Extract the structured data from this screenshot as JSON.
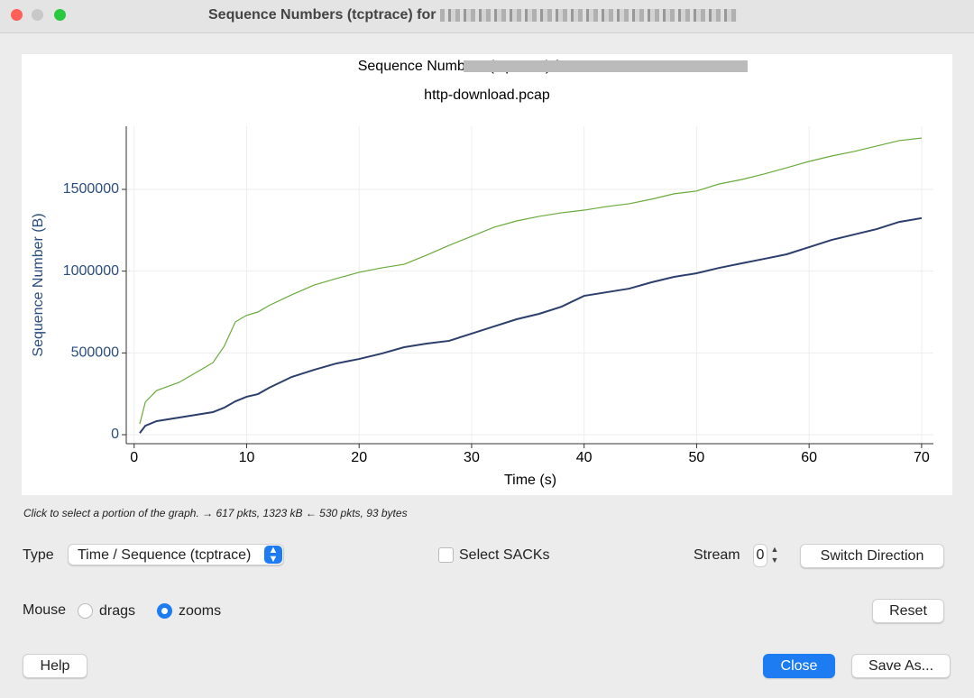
{
  "window": {
    "title": "Sequence Numbers (tcptrace) for"
  },
  "chart_data": {
    "type": "line",
    "title": "Sequence Numbers (tcptrace) for",
    "subtitle": "http-download.pcap",
    "x_label": "Time (s)",
    "y_label": "Sequence Number (B)",
    "x": [
      0.5,
      1,
      2,
      4,
      6,
      7,
      8,
      9,
      10,
      11,
      12,
      14,
      16,
      18,
      20,
      22,
      24,
      26,
      28,
      30,
      32,
      34,
      36,
      38,
      40,
      42,
      44,
      46,
      48,
      50,
      52,
      54,
      56,
      58,
      60,
      62,
      64,
      66,
      68,
      70
    ],
    "series": [
      {
        "color": "#6aaa3a",
        "values": [
          66000,
          200000,
          270000,
          320000,
          400000,
          440000,
          540000,
          690000,
          730000,
          750000,
          790000,
          855000,
          915000,
          955000,
          993000,
          1020000,
          1042000,
          1098000,
          1158000,
          1213000,
          1269000,
          1307000,
          1335000,
          1357000,
          1373000,
          1395000,
          1412000,
          1440000,
          1473000,
          1490000,
          1533000,
          1560000,
          1594000,
          1632000,
          1671000,
          1704000,
          1732000,
          1765000,
          1798000,
          1814000
        ]
      },
      {
        "color": "#2c3e6b",
        "values": [
          10000,
          55000,
          83000,
          105000,
          127000,
          138000,
          165000,
          204000,
          232000,
          248000,
          287000,
          353000,
          397000,
          436000,
          463000,
          496000,
          535000,
          557000,
          574000,
          618000,
          662000,
          706000,
          739000,
          783000,
          849000,
          871000,
          893000,
          932000,
          965000,
          987000,
          1020000,
          1048000,
          1075000,
          1103000,
          1147000,
          1191000,
          1224000,
          1257000,
          1301000,
          1324000
        ]
      }
    ],
    "xlim": [
      -0.7,
      71.05
    ],
    "ylim": [
      -55000,
      1886000
    ],
    "xticks": [
      0,
      10,
      20,
      30,
      40,
      50,
      60,
      70
    ],
    "yticks": [
      0,
      500000,
      1000000,
      1500000
    ],
    "grid": true
  },
  "status": "Click to select a portion of the graph. → 617 pkts, 1323 kB ← 530 pkts, 93 bytes",
  "controls": {
    "type_label": "Type",
    "type_value": "Time / Sequence (tcptrace)",
    "select_sacks": "Select SACKs",
    "stream_label": "Stream",
    "stream_value": "0",
    "switch_direction": "Switch Direction",
    "mouse_label": "Mouse",
    "drags": "drags",
    "zooms": "zooms",
    "reset": "Reset",
    "help": "Help",
    "close": "Close",
    "save_as": "Save As..."
  }
}
